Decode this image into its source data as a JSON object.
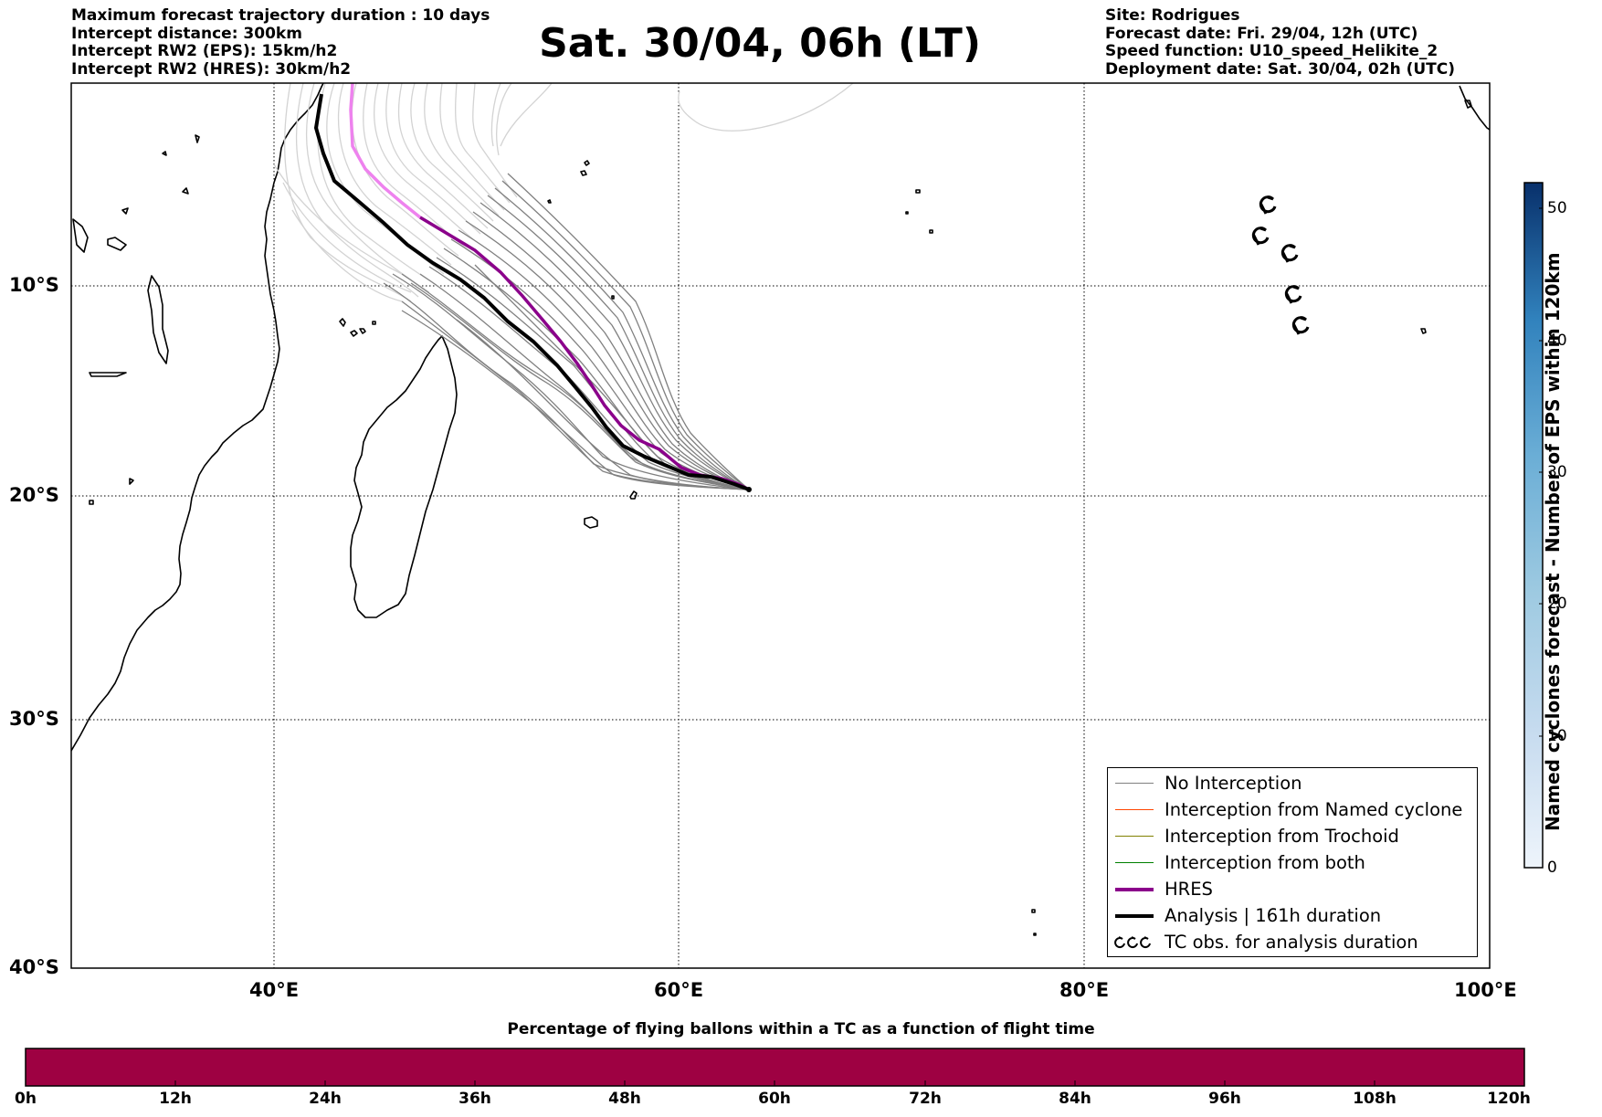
{
  "header": {
    "left_lines": [
      "Maximum forecast trajectory duration : 10 days",
      "Intercept distance: 300km",
      "Intercept RW2 (EPS):  15km/h2",
      "Intercept RW2 (HRES): 30km/h2"
    ],
    "title": "Sat. 30/04, 06h (LT)",
    "right_lines": [
      "Site: Rodrigues",
      "Forecast date: Fri. 29/04, 12h (UTC)",
      "Speed function: U10_speed_Helikite_2",
      "Deployment date: Sat. 30/04, 02h (UTC)"
    ]
  },
  "map": {
    "lat_labels": [
      "10°S",
      "20°S",
      "30°S",
      "40°S"
    ],
    "lon_labels": [
      "40°E",
      "60°E",
      "80°E",
      "100°E"
    ],
    "lon_range": [
      30,
      100
    ],
    "lat_range": [
      -40,
      -1
    ],
    "colors": {
      "no_interception": "#808080",
      "named_cyclone": "#ff4500",
      "trochoid": "#808000",
      "both": "#008000",
      "hres": "#8b008b",
      "hres_early": "#ee82ee",
      "analysis": "#000000"
    }
  },
  "legend": {
    "items": [
      {
        "label": "No Interception",
        "color": "#808080",
        "width": 1
      },
      {
        "label": "Interception from Named cyclone",
        "color": "#ff4500",
        "width": 1
      },
      {
        "label": "Interception from Trochoid",
        "color": "#808000",
        "width": 1
      },
      {
        "label": "Interception from both",
        "color": "#008000",
        "width": 1
      },
      {
        "label": "HRES",
        "color": "#8b008b",
        "width": 4
      },
      {
        "label": "Analysis | 161h duration",
        "color": "#000000",
        "width": 4
      },
      {
        "label": "TC obs. for analysis duration",
        "icon": "tc-symbol-icon"
      }
    ]
  },
  "colorbar": {
    "title": "Named cyclones forecast - Number of EPS within 120km",
    "ticks": [
      "0",
      "10",
      "20",
      "30",
      "40",
      "50"
    ],
    "colors": [
      "#eef4fb",
      "#c6dbef",
      "#9ecae1",
      "#6baed6",
      "#3182bd",
      "#08306b"
    ]
  },
  "bottom_bar": {
    "title": "Percentage of flying ballons within a TC as a function of flight time",
    "ticks": [
      "0h",
      "12h",
      "24h",
      "36h",
      "48h",
      "60h",
      "72h",
      "84h",
      "96h",
      "108h",
      "120h"
    ],
    "color": "#9e0142"
  }
}
